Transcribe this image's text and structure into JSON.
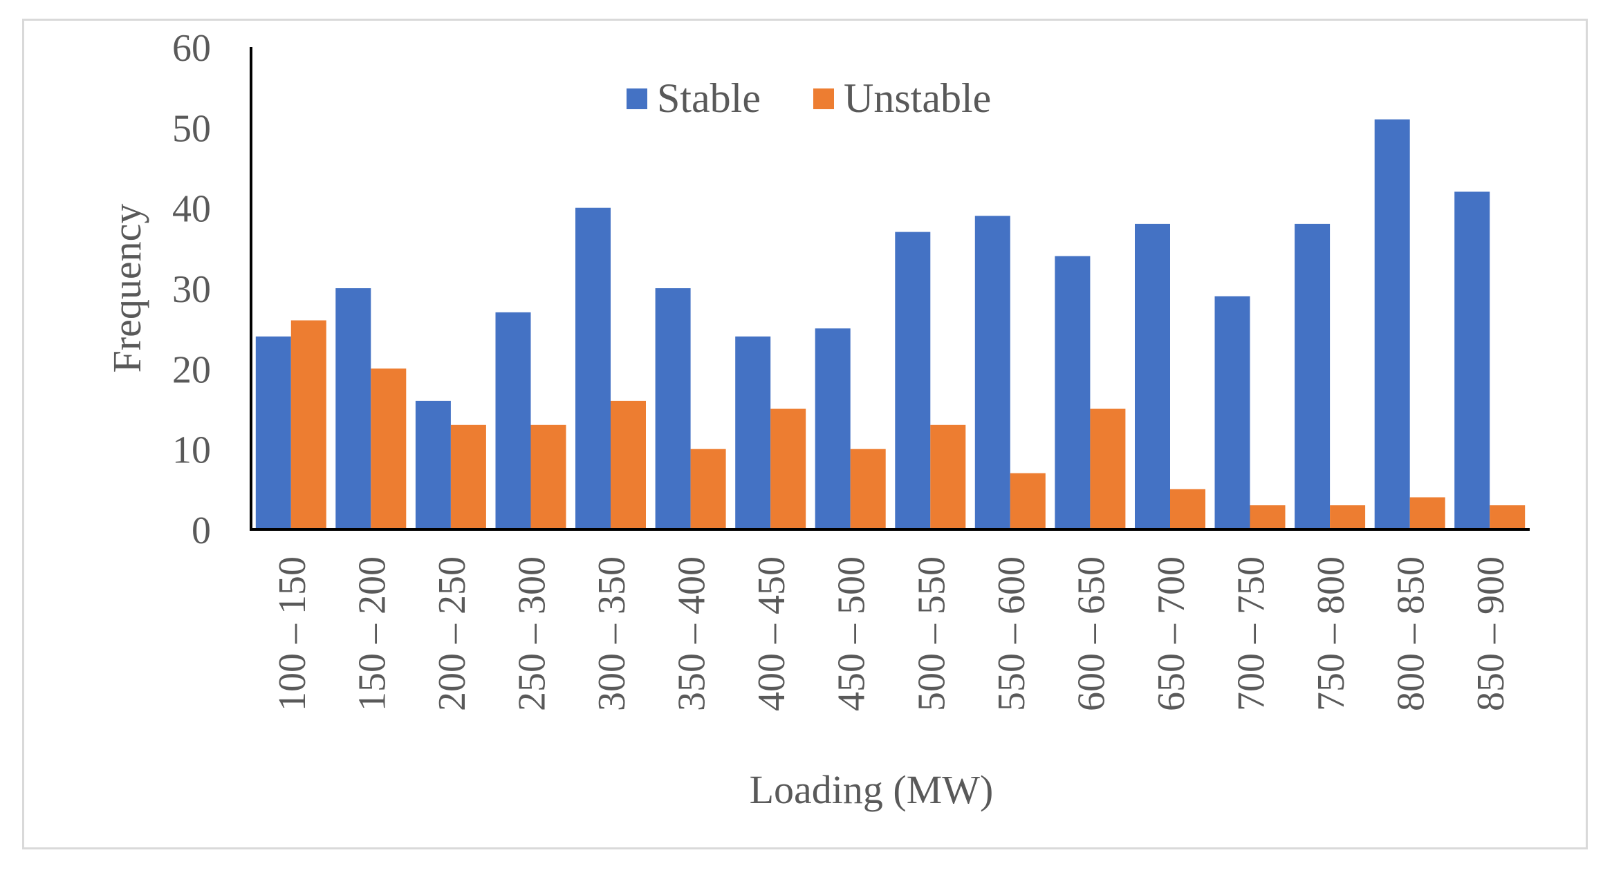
{
  "chart_data": {
    "type": "bar",
    "title": "",
    "xlabel": "Loading (MW)",
    "ylabel": "Frequency",
    "ylim": [
      0,
      60
    ],
    "yticks": [
      0,
      10,
      20,
      30,
      40,
      50,
      60
    ],
    "grid": false,
    "legend_position": "top-center",
    "categories": [
      "100 – 150",
      "150 – 200",
      "200 – 250",
      "250 – 300",
      "300 – 350",
      "350 – 400",
      "400 – 450",
      "450 – 500",
      "500 – 550",
      "550 – 600",
      "600 – 650",
      "650 – 700",
      "700 – 750",
      "750 – 800",
      "800 – 850",
      "850 – 900"
    ],
    "series": [
      {
        "name": "Stable",
        "color": "#4472C4",
        "values": [
          24,
          30,
          16,
          27,
          40,
          30,
          24,
          25,
          37,
          39,
          34,
          38,
          29,
          38,
          51,
          42
        ]
      },
      {
        "name": "Unstable",
        "color": "#ED7D31",
        "values": [
          26,
          20,
          13,
          13,
          16,
          10,
          15,
          10,
          13,
          7,
          15,
          5,
          3,
          3,
          4,
          3
        ]
      }
    ]
  }
}
